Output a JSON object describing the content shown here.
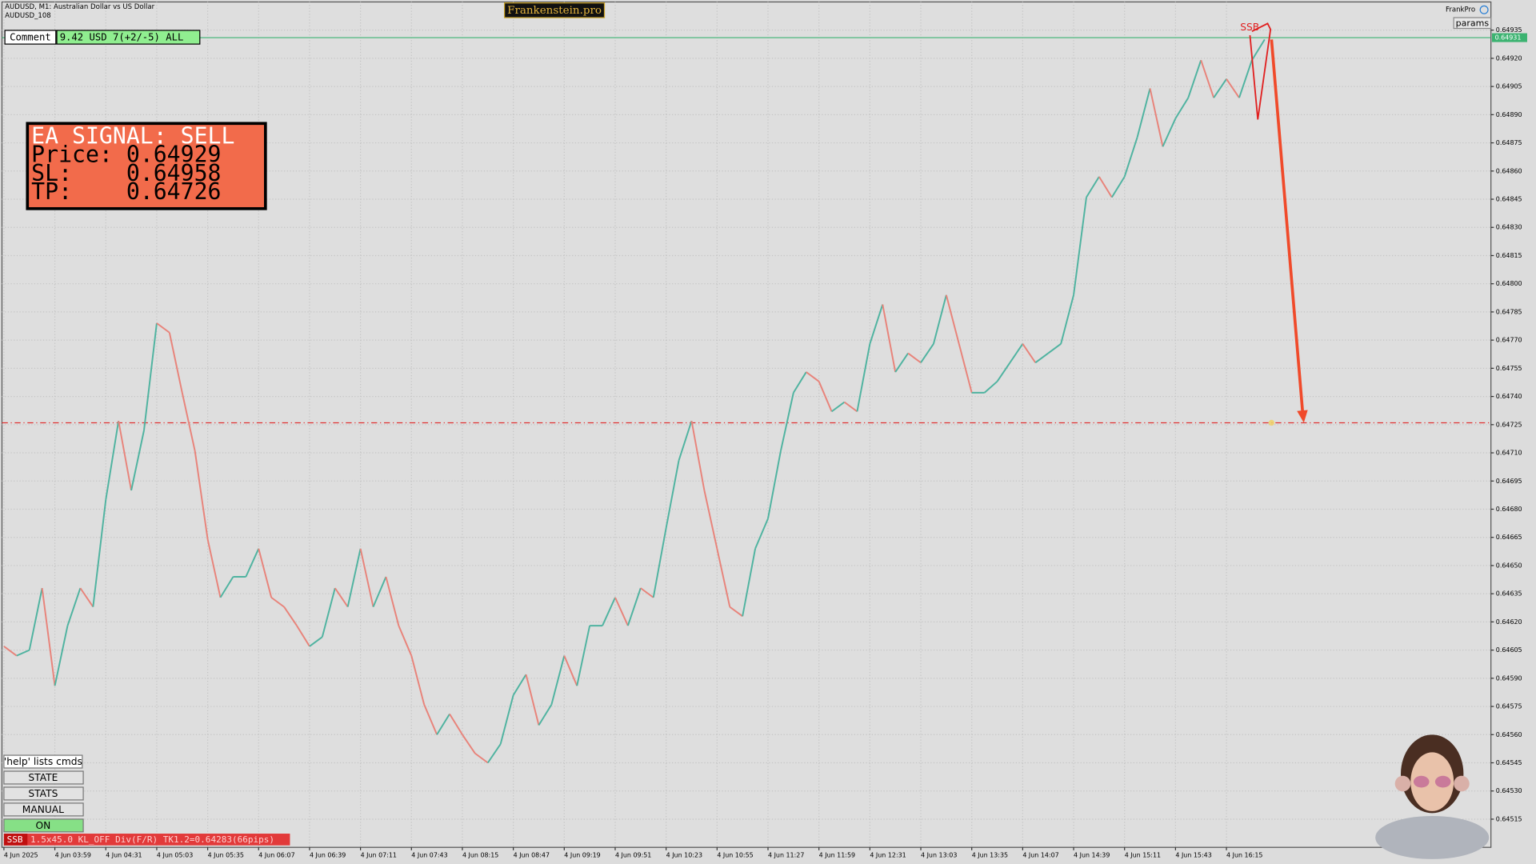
{
  "header": {
    "brand": "Frankenstein.pro",
    "user": "FrankPro",
    "params": "params"
  },
  "comment": {
    "label": "Comment",
    "text": "9.42 USD 7(+2/-5) ALL"
  },
  "signal": {
    "lines": [
      "EA SIGNAL: SELL",
      "Price: 0.64929",
      "SL:    0.64958",
      "TP:    0.64726"
    ]
  },
  "buttons": [
    "'help' lists cmds",
    "STATE",
    "STATS",
    "MANUAL",
    "ON"
  ],
  "status": {
    "tag": "SSB",
    "text": "1.5x45.0 KL_OFF Div(F/R) TK1.2=0.64283(66pips)"
  },
  "chart_data": {
    "type": "line",
    "title": "AUDUSD, M1:  Australian Dollar vs US Dollar",
    "subtitle": "AUDUSD_108",
    "categories": [
      "4 Jun 2025",
      null,
      null,
      null,
      "4 Jun 03:59",
      null,
      null,
      null,
      "4 Jun 04:31",
      null,
      null,
      null,
      "4 Jun 05:03",
      null,
      null,
      null,
      "4 Jun 05:35",
      null,
      null,
      null,
      "4 Jun 06:07",
      null,
      null,
      null,
      "4 Jun 06:39",
      null,
      null,
      null,
      "4 Jun 07:11",
      null,
      null,
      null,
      "4 Jun 07:43",
      null,
      null,
      null,
      "4 Jun 08:15",
      null,
      null,
      null,
      "4 Jun 08:47",
      null,
      null,
      null,
      "4 Jun 09:19",
      null,
      null,
      null,
      "4 Jun 09:51",
      null,
      null,
      null,
      "4 Jun 10:23",
      null,
      null,
      null,
      "4 Jun 10:55",
      null,
      null,
      null,
      "4 Jun 11:27",
      null,
      null,
      null,
      "4 Jun 11:59",
      null,
      null,
      null,
      "4 Jun 12:31",
      null,
      null,
      null,
      "4 Jun 13:03",
      null,
      null,
      null,
      "4 Jun 13:35",
      null,
      null,
      null,
      "4 Jun 14:07",
      null,
      null,
      null,
      "4 Jun 14:39",
      null,
      null,
      null,
      "4 Jun 15:11",
      null,
      null,
      null,
      "4 Jun 15:43",
      null,
      null,
      null,
      "4 Jun 16:15",
      null,
      null,
      null
    ],
    "values": [
      0.64607,
      0.64602,
      0.64605,
      0.64638,
      0.64586,
      0.64618,
      0.64638,
      0.64628,
      0.64685,
      0.64727,
      0.6469,
      0.64722,
      0.64779,
      0.64774,
      0.64742,
      0.64711,
      0.64664,
      0.64633,
      0.64644,
      0.64644,
      0.64659,
      0.64633,
      0.64628,
      0.64618,
      0.64607,
      0.64612,
      0.64638,
      0.64628,
      0.64659,
      0.64628,
      0.64644,
      0.64618,
      0.64602,
      0.64576,
      0.6456,
      0.64571,
      0.6456,
      0.6455,
      0.64545,
      0.64555,
      0.64581,
      0.64592,
      0.64565,
      0.64576,
      0.64602,
      0.64586,
      0.64618,
      0.64618,
      0.64633,
      0.64618,
      0.64638,
      0.64633,
      0.6467,
      0.64706,
      0.64727,
      0.6469,
      0.64659,
      0.64628,
      0.64623,
      0.64659,
      0.64675,
      0.64711,
      0.64742,
      0.64753,
      0.64748,
      0.64732,
      0.64737,
      0.64732,
      0.64768,
      0.64789,
      0.64753,
      0.64763,
      0.64758,
      0.64768,
      0.64794,
      0.64768,
      0.64742,
      0.64742,
      0.64748,
      0.64758,
      0.64768,
      0.64758,
      0.64763,
      0.64768,
      0.64794,
      0.64846,
      0.64857,
      0.64846,
      0.64857,
      0.64878,
      0.64904,
      0.64873,
      0.64888,
      0.64899,
      0.64919,
      0.64899,
      0.64909,
      0.64899,
      0.64919,
      0.6493
    ],
    "up_color": "#4fb3a0",
    "down_color": "#e8837a",
    "ylim": [
      0.645,
      0.6495
    ],
    "yticks": [
      0.64515,
      {
        "value": 0.6453,
        "label": "0.64530"
      },
      0.64545,
      {
        "value": 0.6456,
        "label": "0.64560"
      },
      0.64575,
      {
        "value": 0.6459,
        "label": "0.64590"
      },
      0.64605,
      {
        "value": 0.6462,
        "label": "0.64620"
      },
      0.64635,
      {
        "value": 0.6465,
        "label": "0.64650"
      },
      0.64665,
      {
        "value": 0.6468,
        "label": "0.64680"
      },
      0.64695,
      {
        "value": 0.6471,
        "label": "0.64710"
      },
      0.64725,
      {
        "value": 0.6474,
        "label": "0.64740"
      },
      0.64755,
      {
        "value": 0.6477,
        "label": "0.64770"
      },
      0.64785,
      {
        "value": 0.648,
        "label": "0.64800"
      },
      0.64815,
      {
        "value": 0.6483,
        "label": "0.64830"
      },
      0.64845,
      {
        "value": 0.6486,
        "label": "0.64860"
      },
      0.64875,
      {
        "value": 0.6489,
        "label": "0.64890"
      },
      0.64905,
      {
        "value": 0.6492,
        "label": "0.64920"
      },
      0.64935
    ],
    "grid": true,
    "price_line": {
      "value": 0.64931,
      "label": "0.64931",
      "color": "#3cb371"
    },
    "target_line": {
      "value": 0.64726,
      "color": "#e03030"
    },
    "annotation": "SSB"
  }
}
